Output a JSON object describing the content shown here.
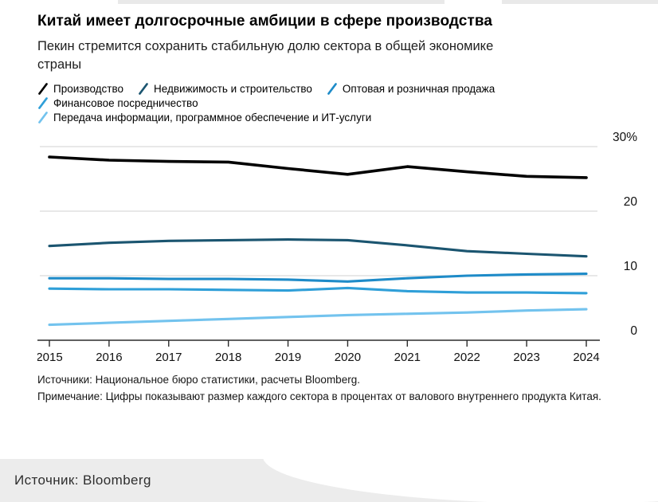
{
  "header": {
    "title": "Китай имеет долгосрочные амбиции в сфере производства",
    "subtitle": "Пекин стремится сохранить стабильную долю сектора в общей экономике страны"
  },
  "chart_data": {
    "type": "line",
    "x": [
      2015,
      2016,
      2017,
      2018,
      2019,
      2020,
      2021,
      2022,
      2023,
      2024
    ],
    "series": [
      {
        "name": "Производство",
        "color": "#000000",
        "values": [
          28.4,
          27.9,
          27.7,
          27.6,
          26.6,
          25.7,
          26.9,
          26.1,
          25.4,
          25.2
        ]
      },
      {
        "name": "Недвижимость и строительство",
        "color": "#1b5570",
        "values": [
          14.6,
          15.1,
          15.4,
          15.5,
          15.6,
          15.5,
          14.7,
          13.8,
          13.4,
          13.0
        ]
      },
      {
        "name": "Оптовая и розничная продажа",
        "color": "#1e8bc8",
        "values": [
          9.6,
          9.6,
          9.5,
          9.5,
          9.4,
          9.1,
          9.6,
          10.0,
          10.2,
          10.3
        ]
      },
      {
        "name": "Финансовое посредничество",
        "color": "#2f9fd8",
        "values": [
          8.0,
          7.9,
          7.9,
          7.8,
          7.7,
          8.1,
          7.6,
          7.4,
          7.4,
          7.3
        ]
      },
      {
        "name": "Передача информации, программное обеспечение и ИТ-услуги",
        "color": "#73c3ee",
        "values": [
          2.4,
          2.7,
          3.0,
          3.3,
          3.6,
          3.9,
          4.1,
          4.3,
          4.6,
          4.8
        ]
      }
    ],
    "legend_rows": [
      [
        0,
        1,
        2
      ],
      [
        3
      ],
      [
        4
      ]
    ],
    "yticks": [
      {
        "value": 0,
        "label": "0"
      },
      {
        "value": 10,
        "label": "10"
      },
      {
        "value": 20,
        "label": "20"
      },
      {
        "value": 30,
        "label": "30%"
      }
    ],
    "ylim": [
      0,
      30
    ],
    "grid": true,
    "legend_position": "top",
    "colors": {
      "gridline": "#d9d9d9",
      "axis": "#2b2b2b",
      "tick_label": "#111111"
    }
  },
  "footer": {
    "sources": "Источники: Национальное бюро статистики, расчеты Bloomberg.",
    "note": "Примечание: Цифры показывают размер каждого сектора в процентах от валового внутреннего продукта Китая.",
    "bottom_source": "Источник: Bloomberg"
  }
}
